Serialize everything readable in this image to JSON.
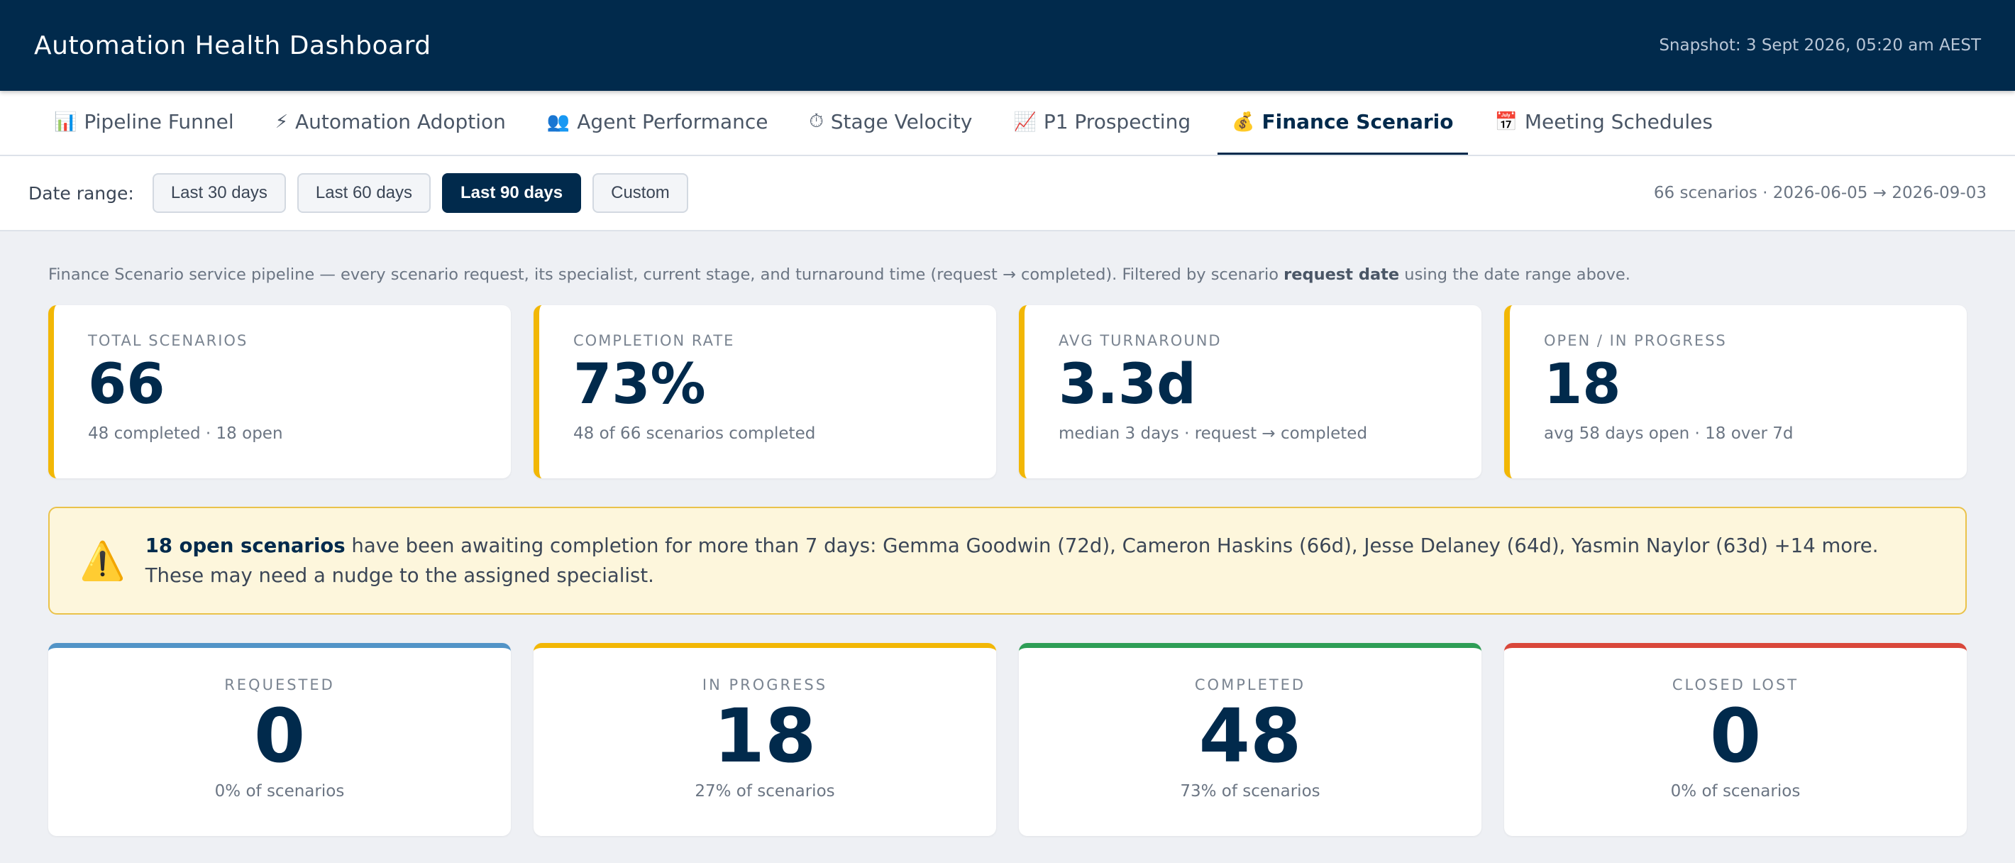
{
  "header": {
    "title": "Automation Health Dashboard",
    "snapshot": "Snapshot: 3 Sept 2026, 05:20 am AEST"
  },
  "tabs": [
    {
      "icon": "📊",
      "icon_name": "bar-chart-icon",
      "label": "Pipeline Funnel"
    },
    {
      "icon": "⚡",
      "icon_name": "lightning-icon",
      "label": "Automation Adoption"
    },
    {
      "icon": "👥",
      "icon_name": "people-icon",
      "label": "Agent Performance"
    },
    {
      "icon": "⏱",
      "icon_name": "stopwatch-icon",
      "label": "Stage Velocity"
    },
    {
      "icon": "📈",
      "icon_name": "trend-up-icon",
      "label": "P1 Prospecting"
    },
    {
      "icon": "💰",
      "icon_name": "money-bag-icon",
      "label": "Finance Scenario",
      "active": true
    },
    {
      "icon": "📅",
      "icon_name": "calendar-icon",
      "label": "Meeting Schedules"
    }
  ],
  "filter": {
    "label": "Date range:",
    "options": [
      "Last 30 days",
      "Last 60 days",
      "Last 90 days",
      "Custom"
    ],
    "selected": "Last 90 days",
    "range_summary": "66 scenarios · 2026-06-05 → 2026-09-03"
  },
  "description": {
    "prefix": "Finance Scenario service pipeline — every scenario request, its specialist, current stage, and turnaround time (request → completed). Filtered by scenario ",
    "bold": "request date",
    "suffix": " using the date range above."
  },
  "kpis": [
    {
      "label": "TOTAL SCENARIOS",
      "value": "66",
      "sub": "48 completed · 18 open"
    },
    {
      "label": "COMPLETION RATE",
      "value": "73%",
      "sub": "48 of 66 scenarios completed"
    },
    {
      "label": "AVG TURNAROUND",
      "value": "3.3d",
      "sub": "median 3 days · request → completed"
    },
    {
      "label": "OPEN / IN PROGRESS",
      "value": "18",
      "sub": "avg 58 days open · 18 over 7d"
    }
  ],
  "alert": {
    "icon": "⚠️",
    "icon_name": "warning-icon",
    "bold": "18 open scenarios",
    "text": " have been awaiting completion for more than 7 days: Gemma Goodwin (72d), Cameron Haskins (66d), Jesse Delaney (64d), Yasmin Naylor (63d) +14 more. These may need a nudge to the assigned specialist."
  },
  "stages": [
    {
      "label": "REQUESTED",
      "value": "0",
      "sub": "0% of scenarios",
      "color": "#5294c7"
    },
    {
      "label": "IN PROGRESS",
      "value": "18",
      "sub": "27% of scenarios",
      "color": "#f2b705"
    },
    {
      "label": "COMPLETED",
      "value": "48",
      "sub": "73% of scenarios",
      "color": "#2e9e56"
    },
    {
      "label": "CLOSED LOST",
      "value": "0",
      "sub": "0% of scenarios",
      "color": "#d9473a"
    }
  ],
  "colors": {
    "brand": "#012a4c",
    "kpi_accent": "#f2b705",
    "alert_bg": "#fdf6dc",
    "alert_border": "#eac24a"
  }
}
